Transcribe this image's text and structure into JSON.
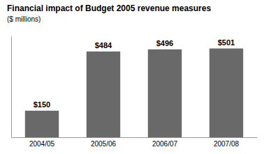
{
  "chart_data": {
    "type": "bar",
    "title": "Financial impact of Budget 2005 revenue measures",
    "subtitle": "($ millions)",
    "categories": [
      "2004/05",
      "2005/06",
      "2006/07",
      "2007/08"
    ],
    "values": [
      150,
      484,
      496,
      501
    ],
    "value_labels": [
      "$150",
      "$484",
      "$496",
      "$501"
    ],
    "data_labels": true,
    "color": "#696969",
    "ylim": [
      0,
      570
    ],
    "tick_labels": "x",
    "grid": false
  }
}
